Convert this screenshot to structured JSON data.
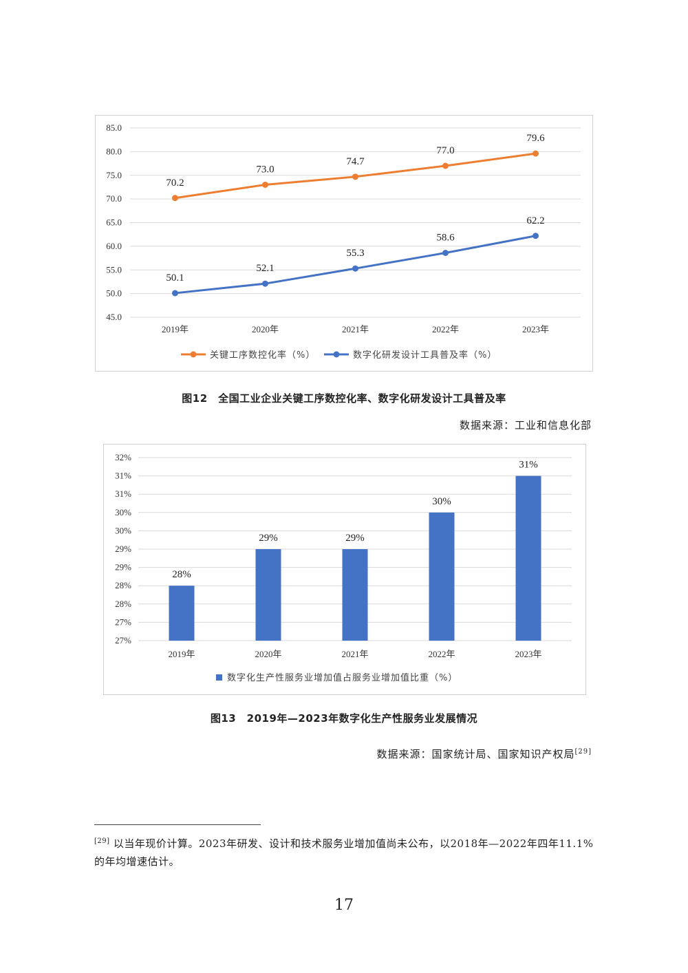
{
  "figure12": {
    "caption": "图12　全国工业企业关键工序数控化率、数字化研发设计工具普及率",
    "source": "数据来源：工业和信息化部",
    "chart_data": {
      "type": "line",
      "categories": [
        "2019年",
        "2020年",
        "2021年",
        "2022年",
        "2023年"
      ],
      "series": [
        {
          "name": "关键工序数控化率（%）",
          "values": [
            70.2,
            73.0,
            74.7,
            77.0,
            79.6
          ],
          "labels": [
            "70.2",
            "73.0",
            "74.7",
            "77.0",
            "79.6"
          ],
          "color": "#ED7D31"
        },
        {
          "name": "数字化研发设计工具普及率（%）",
          "values": [
            50.1,
            52.1,
            55.3,
            58.6,
            62.2
          ],
          "labels": [
            "50.1",
            "52.1",
            "55.3",
            "58.6",
            "62.2"
          ],
          "color": "#4472C4"
        }
      ],
      "yticks": [
        "45.0",
        "50.0",
        "55.0",
        "60.0",
        "65.0",
        "70.0",
        "75.0",
        "80.0",
        "85.0"
      ],
      "ylim": [
        45,
        85
      ],
      "grid": true,
      "legend": "bottom"
    }
  },
  "figure13": {
    "caption": "图13　2019年—2023年数字化生产性服务业发展情况",
    "source": "数据来源：国家统计局、国家知识产权局",
    "source_ref": "[29]",
    "chart_data": {
      "type": "bar",
      "categories": [
        "2019年",
        "2020年",
        "2021年",
        "2022年",
        "2023年"
      ],
      "series": [
        {
          "name": "数字化生产性服务业增加值占服务业增加值比重（%）",
          "values": [
            28.0,
            29.0,
            29.0,
            30.0,
            31.0
          ],
          "labels": [
            "28%",
            "29%",
            "29%",
            "30%",
            "31%"
          ],
          "color": "#4472C4"
        }
      ],
      "yticks": [
        "27%",
        "27%",
        "28%",
        "28%",
        "29%",
        "29%",
        "30%",
        "30%",
        "31%",
        "31%",
        "32%"
      ],
      "ylim": [
        26.5,
        31.5
      ],
      "grid": true,
      "legend": "bottom"
    }
  },
  "footnote": {
    "marker": "[29]",
    "text": "以当年现价计算。2023年研发、设计和技术服务业增加值尚未公布，以2018年—2022年四年11.1%的年均增速估计。"
  },
  "page_number": "17"
}
